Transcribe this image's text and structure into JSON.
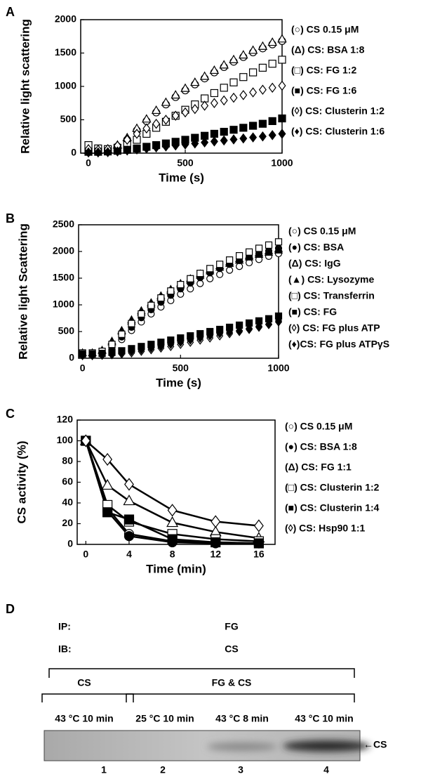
{
  "chart_data": [
    {
      "type": "scatter",
      "panel": "A",
      "ylabel": "Relative light scattering",
      "xlabel": "Time (s)",
      "x": [
        0,
        50,
        100,
        150,
        200,
        250,
        300,
        350,
        400,
        450,
        500,
        550,
        600,
        650,
        700,
        750,
        800,
        850,
        900,
        950,
        1000
      ],
      "xlim": [
        -40,
        1000
      ],
      "xticks": [
        0,
        500,
        1000
      ],
      "ylim": [
        0,
        2000
      ],
      "yticks": [
        0,
        500,
        1000,
        1500,
        2000
      ],
      "series": [
        {
          "name": "(○) CS 0.15 μM",
          "marker": "circle",
          "filled": false,
          "color": "#000000",
          "values": [
            30,
            30,
            40,
            100,
            200,
            340,
            480,
            610,
            730,
            840,
            940,
            1030,
            1120,
            1210,
            1290,
            1370,
            1440,
            1510,
            1570,
            1630,
            1680
          ]
        },
        {
          "name": "(Δ) CS: BSA 1:8",
          "marker": "triangle",
          "filled": false,
          "color": "#000000",
          "values": [
            40,
            40,
            50,
            120,
            230,
            370,
            510,
            640,
            760,
            870,
            970,
            1060,
            1150,
            1240,
            1320,
            1400,
            1470,
            1540,
            1600,
            1660,
            1710
          ]
        },
        {
          "name": "(□) CS: FG 1:2",
          "marker": "square",
          "filled": false,
          "color": "#000000",
          "values": [
            120,
            70,
            60,
            80,
            120,
            200,
            290,
            380,
            470,
            560,
            650,
            730,
            820,
            900,
            980,
            1060,
            1140,
            1210,
            1280,
            1340,
            1400
          ]
        },
        {
          "name": "(■) CS: FG 1:6",
          "marker": "square",
          "filled": true,
          "color": "#000000",
          "values": [
            20,
            20,
            25,
            35,
            50,
            70,
            95,
            120,
            145,
            170,
            200,
            230,
            260,
            290,
            320,
            350,
            380,
            410,
            440,
            480,
            520
          ]
        },
        {
          "name": "(◊) CS: Clusterin 1:2",
          "marker": "diamond",
          "filled": false,
          "color": "#000000",
          "values": [
            60,
            50,
            60,
            110,
            200,
            290,
            370,
            440,
            500,
            560,
            610,
            660,
            710,
            750,
            790,
            830,
            870,
            910,
            950,
            980,
            1010
          ]
        },
        {
          "name": "(♦) CS: Clusterin 1:6",
          "marker": "diamond",
          "filled": true,
          "color": "#000000",
          "values": [
            10,
            10,
            15,
            25,
            40,
            55,
            70,
            85,
            100,
            115,
            130,
            145,
            160,
            175,
            190,
            205,
            220,
            235,
            250,
            270,
            290
          ]
        }
      ]
    },
    {
      "type": "scatter",
      "panel": "B",
      "ylabel": "Relative light Scattering",
      "xlabel": "Time (s)",
      "x": [
        0,
        50,
        100,
        150,
        200,
        250,
        300,
        350,
        400,
        450,
        500,
        550,
        600,
        650,
        700,
        750,
        800,
        850,
        900,
        950,
        1000
      ],
      "xlim": [
        -20,
        1000
      ],
      "xticks": [
        0,
        500,
        1000
      ],
      "ylim": [
        0,
        2500
      ],
      "yticks": [
        0,
        500,
        1000,
        1500,
        2000,
        2500
      ],
      "series": [
        {
          "name": "(○) CS 0.15 μM",
          "marker": "circle",
          "filled": false,
          "color": "#000000",
          "values": [
            100,
            100,
            110,
            200,
            350,
            520,
            680,
            830,
            960,
            1080,
            1200,
            1300,
            1400,
            1490,
            1570,
            1650,
            1720,
            1790,
            1850,
            1910,
            1960
          ]
        },
        {
          "name": "(●) CS: BSA",
          "marker": "circle",
          "filled": true,
          "color": "#000000",
          "values": [
            100,
            100,
            120,
            230,
            400,
            580,
            760,
            910,
            1050,
            1180,
            1300,
            1410,
            1510,
            1600,
            1680,
            1760,
            1830,
            1900,
            1960,
            2010,
            2060
          ]
        },
        {
          "name": "(Δ) CS: IgG",
          "marker": "triangle",
          "filled": false,
          "color": "#000000",
          "values": [
            100,
            100,
            150,
            320,
            520,
            720,
            890,
            1040,
            1170,
            1290,
            1400,
            1490,
            1580,
            1660,
            1730,
            1800,
            1860,
            1920,
            1970,
            2010,
            2050
          ]
        },
        {
          "name": "(▲) CS: Lysozyme",
          "marker": "triangle",
          "filled": true,
          "color": "#000000",
          "values": [
            100,
            100,
            140,
            300,
            500,
            690,
            860,
            1010,
            1140,
            1260,
            1370,
            1460,
            1550,
            1630,
            1700,
            1770,
            1830,
            1890,
            1940,
            1980,
            2020
          ]
        },
        {
          "name": "(□) CS: Transferrin",
          "marker": "square",
          "filled": false,
          "color": "#000000",
          "values": [
            100,
            100,
            130,
            260,
            450,
            650,
            830,
            990,
            1130,
            1260,
            1380,
            1490,
            1590,
            1680,
            1760,
            1840,
            1920,
            1990,
            2060,
            2120,
            2180
          ]
        },
        {
          "name": "(■) CS: FG",
          "marker": "square",
          "filled": true,
          "color": "#000000",
          "values": [
            80,
            80,
            90,
            110,
            140,
            180,
            220,
            260,
            300,
            340,
            380,
            420,
            460,
            500,
            540,
            580,
            620,
            660,
            700,
            740,
            790
          ]
        },
        {
          "name": "(◊) CS: FG plus ATP",
          "marker": "diamond",
          "filled": false,
          "color": "#000000",
          "values": [
            50,
            50,
            55,
            65,
            80,
            100,
            130,
            160,
            190,
            220,
            260,
            300,
            340,
            380,
            420,
            460,
            500,
            540,
            580,
            630,
            680
          ]
        },
        {
          "name": "(♦)CS: FG plus ATPγS",
          "marker": "diamond",
          "filled": true,
          "color": "#000000",
          "values": [
            60,
            60,
            65,
            80,
            100,
            130,
            160,
            190,
            220,
            260,
            300,
            340,
            380,
            420,
            460,
            490,
            520,
            560,
            600,
            640,
            700
          ]
        }
      ]
    },
    {
      "type": "line",
      "panel": "C",
      "ylabel": "CS activity (%)",
      "xlabel": "Time (min)",
      "x": [
        0,
        2,
        4,
        8,
        12,
        16
      ],
      "xlim": [
        -0.8,
        17.5
      ],
      "xticks": [
        0,
        4,
        8,
        12,
        16
      ],
      "ylim": [
        0,
        120
      ],
      "yticks": [
        0,
        20,
        40,
        60,
        80,
        100,
        120
      ],
      "series": [
        {
          "name": "(○) CS 0.15 μM",
          "marker": "circle",
          "filled": false,
          "color": "#000000",
          "values": [
            100,
            35,
            10,
            3,
            2,
            1
          ]
        },
        {
          "name": "(●) CS: BSA 1:8",
          "marker": "circle",
          "filled": true,
          "color": "#000000",
          "values": [
            100,
            32,
            8,
            2,
            1,
            1
          ]
        },
        {
          "name": "(Δ) CS: FG 1:1",
          "marker": "triangle",
          "filled": false,
          "color": "#000000",
          "values": [
            100,
            57,
            42,
            21,
            12,
            6
          ]
        },
        {
          "name": "(□) CS: Clusterin 1:2",
          "marker": "square",
          "filled": false,
          "color": "#000000",
          "values": [
            100,
            38,
            22,
            10,
            5,
            3
          ]
        },
        {
          "name": "(■) CS: Clusterin 1:4",
          "marker": "square",
          "filled": true,
          "color": "#000000",
          "values": [
            100,
            31,
            24,
            5,
            2,
            1
          ]
        },
        {
          "name": "(◊) CS: Hsp90 1:1",
          "marker": "diamond",
          "filled": false,
          "color": "#000000",
          "values": [
            100,
            82,
            58,
            33,
            22,
            18
          ]
        }
      ]
    }
  ],
  "blot": {
    "panel": "D",
    "ip_label": "IP:",
    "ip_value": "FG",
    "ib_label": "IB:",
    "ib_value": "CS",
    "groups": [
      "CS",
      "FG & CS"
    ],
    "conditions": [
      "43 °C 10 min",
      "25 °C 10 min",
      "43 °C 8 min",
      "43 °C 10 min"
    ],
    "lanes": [
      "1",
      "2",
      "3",
      "4"
    ],
    "band_label": "←CS"
  }
}
